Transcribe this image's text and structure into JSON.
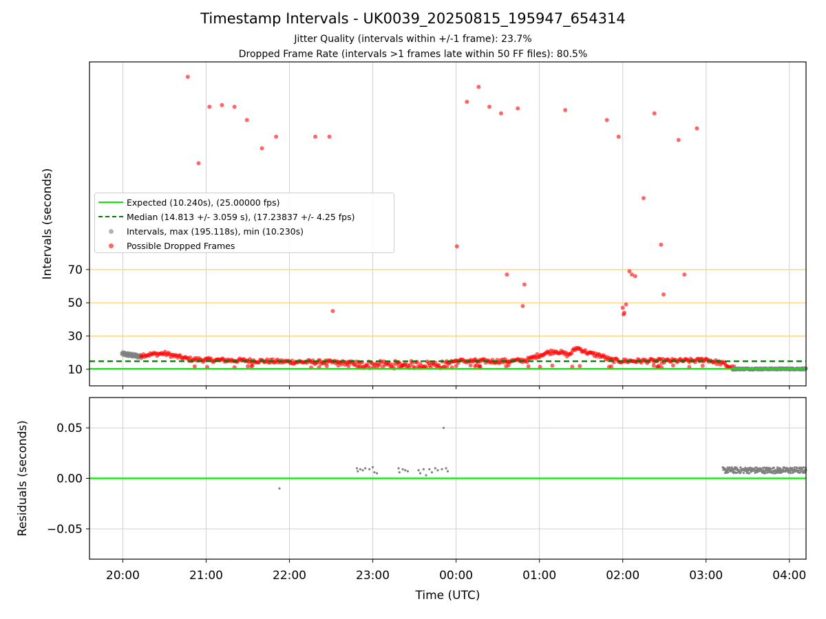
{
  "chart_data": {
    "title": "Timestamp Intervals - UK0039_20250815_195947_654314",
    "subtitle_lines": [
      "Jitter Quality (intervals within +/-1 frame): 23.7%",
      "Dropped Frame Rate (intervals >1 frames late within 50 FF files): 80.5%"
    ],
    "xlabel": "Time (UTC)",
    "x_tick_labels": [
      "20:00",
      "21:00",
      "22:00",
      "23:00",
      "00:00",
      "01:00",
      "02:00",
      "03:00",
      "04:00"
    ],
    "x_tick_hours": [
      20,
      21,
      22,
      23,
      24,
      25,
      26,
      27,
      28
    ],
    "x_range_hours": [
      19.6,
      28.2
    ],
    "colors": {
      "expected": "#00ee00",
      "median": "#007700",
      "intervals": "#808080",
      "dropped": "#ff0000",
      "threshold": "#ffd27a",
      "grid": "#d0d0d0"
    },
    "panels": [
      {
        "type": "scatter",
        "ylabel": "Intervals (seconds)",
        "y_tick_values": [
          10,
          30,
          50,
          70
        ],
        "y_tick_labels": [
          "10",
          "30",
          "50",
          "70"
        ],
        "ylim": [
          0,
          195
        ],
        "threshold_lines": [
          30,
          50,
          70
        ],
        "expected_y": 10.24,
        "median_y": 14.813,
        "legend": [
          {
            "kind": "line",
            "label": "Expected (10.240s), (25.00000 fps)"
          },
          {
            "kind": "dashed",
            "label": "Median (14.813 +/- 3.059 s), (17.23837 +/- 4.25 fps)"
          },
          {
            "kind": "grey-dot",
            "label": "Intervals, max (195.118s), min (10.230s)"
          },
          {
            "kind": "red-dot",
            "label": "Possible Dropped Frames"
          }
        ],
        "dropped_outliers": [
          [
            20.78,
            186
          ],
          [
            20.91,
            134
          ],
          [
            21.04,
            168
          ],
          [
            21.19,
            169
          ],
          [
            21.34,
            168
          ],
          [
            21.49,
            160
          ],
          [
            21.67,
            143
          ],
          [
            21.84,
            150
          ],
          [
            22.31,
            150
          ],
          [
            22.48,
            150
          ],
          [
            22.52,
            45
          ],
          [
            24.01,
            84
          ],
          [
            24.13,
            171
          ],
          [
            24.27,
            180
          ],
          [
            24.4,
            168
          ],
          [
            24.54,
            164
          ],
          [
            24.61,
            67
          ],
          [
            24.74,
            167
          ],
          [
            24.8,
            48
          ],
          [
            24.82,
            61
          ],
          [
            25.31,
            166
          ],
          [
            25.81,
            160
          ],
          [
            25.95,
            150
          ],
          [
            26.0,
            47
          ],
          [
            26.01,
            43
          ],
          [
            26.02,
            44
          ],
          [
            26.04,
            49
          ],
          [
            26.08,
            69
          ],
          [
            26.11,
            67
          ],
          [
            26.15,
            66
          ],
          [
            26.25,
            113
          ],
          [
            26.38,
            164
          ],
          [
            26.46,
            85
          ],
          [
            26.49,
            55
          ],
          [
            26.67,
            148
          ],
          [
            26.74,
            67
          ],
          [
            26.89,
            155
          ]
        ],
        "series": [
          {
            "name": "grey intervals segment 1",
            "color": "intervals",
            "x": [
              19.99,
              20.22
            ],
            "y": [
              19.3,
              17.6
            ]
          },
          {
            "name": "dropped frames main band",
            "color": "dropped",
            "x": [
              20.22,
              20.5,
              20.62,
              20.8,
              21.0,
              21.5,
              22.0,
              22.5,
              22.8,
              23.0,
              23.2,
              23.4,
              23.6,
              23.8,
              24.0,
              24.4,
              24.7,
              24.85,
              25.0,
              25.1,
              25.2,
              25.35,
              25.45,
              25.6,
              25.75,
              25.85,
              26.0,
              26.5,
              26.9,
              27.0,
              27.1,
              27.2,
              27.3,
              27.35
            ],
            "y": [
              18.5,
              19.5,
              18.0,
              16.0,
              15.6,
              15.2,
              14.5,
              14.2,
              13.5,
              12.5,
              13.0,
              11.5,
              12.5,
              13.5,
              15.0,
              14.8,
              15.0,
              15.5,
              18.5,
              20.0,
              21.0,
              18.5,
              23.0,
              19.5,
              18.0,
              15.5,
              15.0,
              15.0,
              15.2,
              16.0,
              14.5,
              13.5,
              11.0,
              10.5
            ]
          },
          {
            "name": "grey intervals segment 2",
            "color": "intervals",
            "x": [
              27.32,
              27.6,
              28.0,
              28.2
            ],
            "y": [
              10.24,
              10.24,
              10.24,
              10.24
            ]
          }
        ]
      },
      {
        "type": "scatter",
        "ylabel": "Residuals (seconds)",
        "y_tick_values": [
          0.05,
          0.0,
          -0.05
        ],
        "y_tick_labels": [
          "0.05",
          "0.00",
          "−0.05"
        ],
        "ylim": [
          -0.08,
          0.08
        ],
        "zero_line": 0.0,
        "points": [
          [
            21.88,
            -0.01
          ],
          [
            22.81,
            0.01
          ],
          [
            22.82,
            0.007
          ],
          [
            22.85,
            0.009
          ],
          [
            22.88,
            0.008
          ],
          [
            22.91,
            0.01
          ],
          [
            22.96,
            0.009
          ],
          [
            23.0,
            0.011
          ],
          [
            23.02,
            0.006
          ],
          [
            23.05,
            0.005
          ],
          [
            23.31,
            0.01
          ],
          [
            23.32,
            0.006
          ],
          [
            23.36,
            0.009
          ],
          [
            23.39,
            0.008
          ],
          [
            23.42,
            0.007
          ],
          [
            23.55,
            0.008
          ],
          [
            23.57,
            0.005
          ],
          [
            23.61,
            0.009
          ],
          [
            23.64,
            0.003
          ],
          [
            23.68,
            0.009
          ],
          [
            23.71,
            0.006
          ],
          [
            23.75,
            0.01
          ],
          [
            23.78,
            0.008
          ],
          [
            23.83,
            0.009
          ],
          [
            23.85,
            0.05
          ],
          [
            23.88,
            0.01
          ],
          [
            23.9,
            0.007
          ]
        ],
        "dense_band": {
          "x": [
            27.2,
            28.2
          ],
          "y": 0.008
        }
      }
    ]
  }
}
